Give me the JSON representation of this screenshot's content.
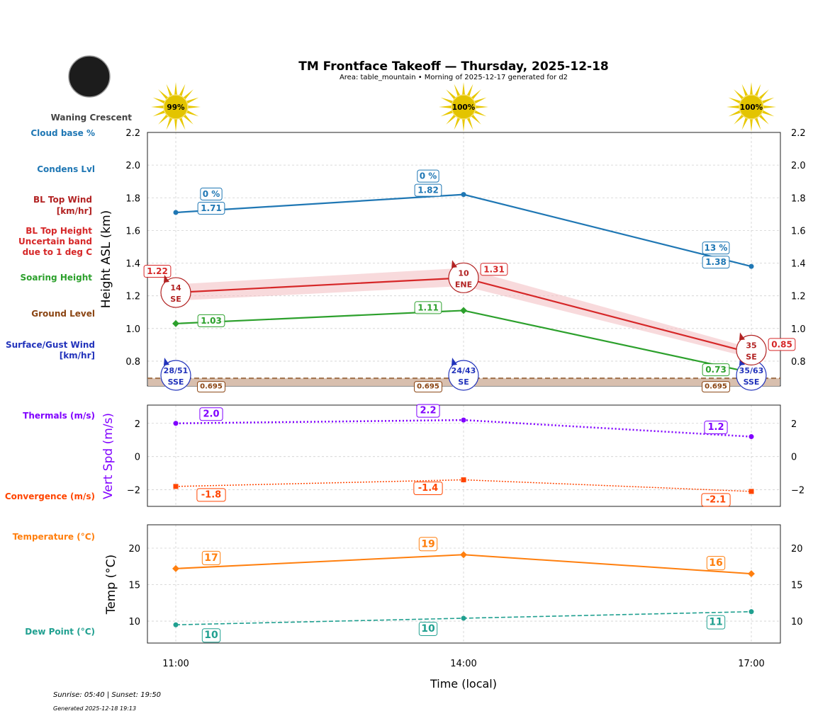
{
  "title": "TM Frontface Takeoff — Thursday, 2025-12-18",
  "subtitle": "Area: table_mountain • Morning of 2025-12-17 generated for d2",
  "moon": {
    "phase": "Waning Crescent",
    "icon": "moon-icon"
  },
  "footer": {
    "sun_times": "Sunrise: 05:40 | Sunset: 19:50",
    "generated": "Generated 2025-12-18 19:13"
  },
  "side_labels": {
    "cloud_base": "Cloud base %",
    "condens": "Condens Lvl",
    "bl_wind_1": "BL Top Wind",
    "bl_wind_2": "[km/hr]",
    "bl_height_1": "BL Top Height",
    "bl_height_2": "Uncertain band",
    "bl_height_3": "due to 1 deg C",
    "soaring": "Soaring Height",
    "ground": "Ground Level",
    "surface_1": "Surface/Gust Wind",
    "surface_2": "[km/hr]",
    "thermals": "Thermals (m/s)",
    "convergence": "Convergence (m/s)",
    "temperature": "Temperature (°C)",
    "dew": "Dew Point (°C)"
  },
  "colors": {
    "cloud": "#1f77b4",
    "bl": "#d62728",
    "bl_dark": "#b22222",
    "soaring": "#2ca02c",
    "ground": "#8b4513",
    "surface": "#2233bb",
    "thermal": "#8000ff",
    "conv": "#ff4500",
    "temp": "#ff7f0e",
    "dew": "#20a090",
    "sun": "#e8c800"
  },
  "chart_data": [
    {
      "type": "line",
      "ylabel": "Height ASL (km)",
      "ylim": [
        0.648,
        2.2
      ],
      "yticks": [
        "0.8",
        "1.0",
        "1.2",
        "1.4",
        "1.6",
        "1.8",
        "2.0",
        "2.2"
      ],
      "x": [
        "11:00",
        "14:00",
        "17:00"
      ],
      "sun_percent": [
        "99%",
        "100%",
        "100%"
      ],
      "series": [
        {
          "key": "cloud",
          "values": [
            1.71,
            1.82,
            1.38
          ],
          "labels": [
            "1.71",
            "1.82",
            "1.38"
          ],
          "cloud_pct": [
            "0 %",
            "0 %",
            "13 %"
          ]
        },
        {
          "key": "bl",
          "values": [
            1.22,
            1.31,
            0.85
          ],
          "labels": [
            "1.22",
            "1.31",
            "0.85"
          ],
          "band": [
            [
              1.17,
              1.27
            ],
            [
              1.26,
              1.37
            ],
            [
              0.82,
              0.88
            ]
          ],
          "wind_speed": [
            "14",
            "10",
            "35"
          ],
          "wind_dir": [
            "SE",
            "ENE",
            "SE"
          ]
        },
        {
          "key": "soaring",
          "values": [
            1.03,
            1.11,
            0.73
          ],
          "labels": [
            "1.03",
            "1.11",
            "0.73"
          ]
        },
        {
          "key": "ground",
          "values": [
            0.695,
            0.695,
            0.695
          ],
          "labels": [
            "0.695",
            "0.695",
            "0.695"
          ]
        }
      ],
      "surface_wind": {
        "speed": [
          "28/51",
          "24/43",
          "35/63"
        ],
        "dir": [
          "SSE",
          "SE",
          "SSE"
        ]
      }
    },
    {
      "type": "line",
      "ylabel": "Vert Spd (m/s)",
      "ylim": [
        -3.0,
        3.1
      ],
      "yticks": [
        "−2",
        "0",
        "2"
      ],
      "series": [
        {
          "key": "thermal",
          "values": [
            2.0,
            2.2,
            1.2
          ],
          "labels": [
            "2.0",
            "2.2",
            "1.2"
          ]
        },
        {
          "key": "conv",
          "values": [
            -1.8,
            -1.4,
            -2.1
          ],
          "labels": [
            "-1.8",
            "-1.4",
            "-2.1"
          ]
        }
      ]
    },
    {
      "type": "line",
      "ylabel": "Temp (°C)",
      "xlabel": "Time (local)",
      "ylim": [
        7.0,
        23.2
      ],
      "yticks": [
        "10",
        "15",
        "20"
      ],
      "series": [
        {
          "key": "temp",
          "values": [
            17.2,
            19.1,
            16.5
          ],
          "labels": [
            "17",
            "19",
            "16"
          ]
        },
        {
          "key": "dew",
          "values": [
            9.5,
            10.4,
            11.3
          ],
          "labels": [
            "10",
            "10",
            "11"
          ]
        }
      ]
    }
  ]
}
